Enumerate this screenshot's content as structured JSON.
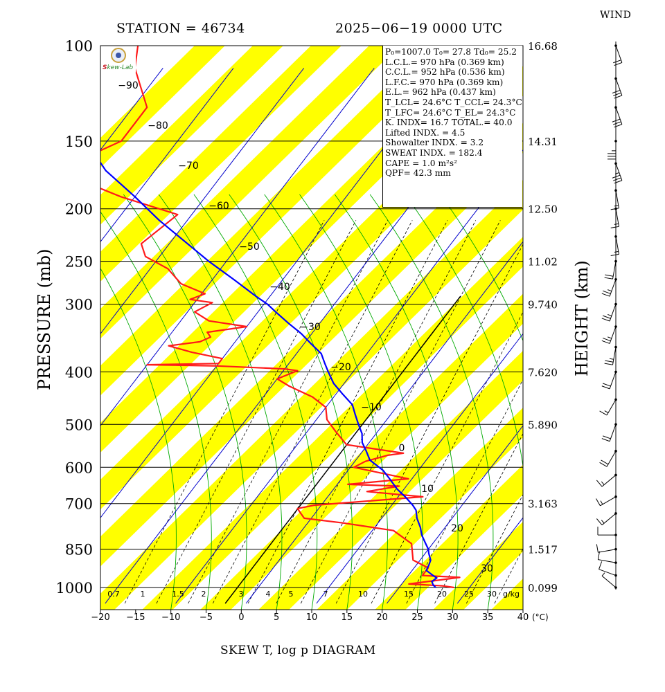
{
  "header": {
    "station": "STATION = 46734",
    "datetime": "2025−06−19 0000 UTC",
    "wind_label": "WIND"
  },
  "axes": {
    "ylabel_left": "PRESSURE (mb)",
    "ylabel_right": "HEIGHT (km)",
    "footer_title": "SKEW T, log p DIAGRAM",
    "x_unit": "(°C)",
    "mixing_unit": "g/kg",
    "pressure_levels": [
      100,
      150,
      200,
      250,
      300,
      400,
      500,
      600,
      700,
      850,
      1000
    ],
    "height_labels": [
      "16.68",
      "14.31",
      "12.50",
      "11.02",
      "9.740",
      "7.620",
      "5.890",
      "3.163",
      "1.517",
      "0.099"
    ],
    "x_ticks": [
      -20,
      -15,
      -10,
      -5,
      0,
      5,
      10,
      15,
      20,
      25,
      30,
      35,
      40
    ],
    "temp_line_labels": [
      -90,
      -80,
      -70,
      -60,
      -50,
      -40,
      -30,
      -20,
      -10,
      0,
      10,
      20,
      30
    ],
    "mixing_ratio_labels": [
      "0.7",
      "1",
      "1.5",
      "2",
      "3",
      "4",
      "5",
      "7",
      "10",
      "15",
      "20",
      "25",
      "30"
    ]
  },
  "logo": {
    "name_a": "S",
    "name_b": "kew",
    "name_c": "Lab"
  },
  "indices": [
    {
      "key": "p0",
      "text": "P₀=1007.0 T₀= 27.8 Td₀= 25.2"
    },
    {
      "key": "lcl",
      "text": "L.C.L.= 970 hPa (0.369 km)"
    },
    {
      "key": "ccl",
      "text": "C.C.L.= 952 hPa (0.536 km)"
    },
    {
      "key": "lfc",
      "text": "L.F.C.= 970 hPa (0.369 km)"
    },
    {
      "key": "el",
      "text": "E.L.= 962 hPa (0.437 km)"
    },
    {
      "key": "tlcl",
      "text": "T_LCL= 24.6°C T_CCL= 24.3°C"
    },
    {
      "key": "tlfc",
      "text": "T_LFC= 24.6°C T_EL= 24.3°C"
    },
    {
      "key": "kindex",
      "text": "K. INDX= 16.7   TOTAL.= 40.0"
    },
    {
      "key": "lifted",
      "text": "Lifted INDX. =    4.5"
    },
    {
      "key": "showalter",
      "text": "Showalter INDX. =     3.2"
    },
    {
      "key": "sweat",
      "text": "SWEAT INDX. =   182.4"
    },
    {
      "key": "cape",
      "text": "CAPE =     1.0 m²s²"
    },
    {
      "key": "qpf",
      "text": "QPF= 42.3 mm"
    }
  ],
  "colors": {
    "temperature": "#ff1a1a",
    "parcel": "#0000ff",
    "isotherm": "#0000cc",
    "moist_adiabat": "#00aa00",
    "band": "#ffff00"
  },
  "chart_data": {
    "type": "line",
    "title": "SKEW T, log p DIAGRAM",
    "xlabel": "(°C)",
    "ylabel": "PRESSURE (mb)",
    "xlim": [
      -20,
      40
    ],
    "ylim": [
      1070,
      100
    ],
    "y_scale": "log",
    "series": [
      {
        "name": "temperature",
        "points": [
          [
            27.8,
            1000
          ],
          [
            26.0,
            993
          ],
          [
            21.0,
            985
          ],
          [
            27.5,
            958
          ],
          [
            22.0,
            950
          ],
          [
            22.0,
            920
          ],
          [
            19.0,
            890
          ],
          [
            17.0,
            830
          ],
          [
            13.0,
            785
          ],
          [
            5.0,
            760
          ],
          [
            -1.0,
            745
          ],
          [
            -2.0,
            730
          ],
          [
            -3.0,
            715
          ],
          [
            -1.0,
            705
          ],
          [
            13.5,
            680
          ],
          [
            5.0,
            665
          ],
          [
            9.0,
            650
          ],
          [
            1.5,
            645
          ],
          [
            9.5,
            630
          ],
          [
            0.5,
            600
          ],
          [
            1.5,
            585
          ],
          [
            4.0,
            570
          ],
          [
            6.0,
            565
          ],
          [
            -3.0,
            545
          ],
          [
            -6.0,
            515
          ],
          [
            -8.5,
            490
          ],
          [
            -10.0,
            465
          ],
          [
            -13.0,
            445
          ],
          [
            -17.5,
            425
          ],
          [
            -20.0,
            412
          ],
          [
            -18.0,
            398
          ],
          [
            -20.0,
            395
          ],
          [
            -30.0,
            390
          ],
          [
            -40.0,
            388
          ],
          [
            -30.0,
            386
          ],
          [
            -30.0,
            378
          ],
          [
            -35.0,
            368
          ],
          [
            -39.0,
            358
          ],
          [
            -35.0,
            352
          ],
          [
            -34.0,
            345
          ],
          [
            -35.0,
            338
          ],
          [
            -30.0,
            330
          ],
          [
            -36.0,
            322
          ],
          [
            -39.0,
            310
          ],
          [
            -37.5,
            298
          ],
          [
            -41.0,
            294
          ],
          [
            -39.5,
            287
          ],
          [
            -44.0,
            275
          ],
          [
            -47.5,
            258
          ],
          [
            -52.0,
            245
          ],
          [
            -54.0,
            232
          ],
          [
            -52.0,
            205
          ],
          [
            -62.0,
            190
          ],
          [
            -74.0,
            170
          ],
          [
            -68.0,
            150
          ],
          [
            -68.0,
            130
          ],
          [
            -74.0,
            110
          ],
          [
            -76.0,
            100
          ]
        ]
      },
      {
        "name": "parcel",
        "points": [
          [
            25.2,
            1000
          ],
          [
            24.6,
            990
          ],
          [
            24.0,
            975
          ],
          [
            24.3,
            960
          ],
          [
            23.5,
            950
          ],
          [
            22.0,
            930
          ],
          [
            21.8,
            910
          ],
          [
            21.5,
            890
          ],
          [
            20.5,
            865
          ],
          [
            20.0,
            850
          ],
          [
            19.0,
            830
          ],
          [
            17.5,
            800
          ],
          [
            16.5,
            775
          ],
          [
            15.0,
            745
          ],
          [
            14.0,
            720
          ],
          [
            13.0,
            705
          ],
          [
            11.0,
            680
          ],
          [
            9.0,
            658
          ],
          [
            7.0,
            632
          ],
          [
            5.0,
            608
          ],
          [
            2.0,
            582
          ],
          [
            0.5,
            560
          ],
          [
            -1.0,
            540
          ],
          [
            -2.0,
            520
          ],
          [
            -3.5,
            500
          ],
          [
            -5.0,
            480
          ],
          [
            -6.5,
            460
          ],
          [
            -9.0,
            440
          ],
          [
            -11.5,
            420
          ],
          [
            -13.5,
            400
          ],
          [
            -15.0,
            385
          ],
          [
            -16.5,
            370
          ],
          [
            -19.0,
            355
          ],
          [
            -21.5,
            340
          ],
          [
            -24.5,
            325
          ],
          [
            -27.5,
            310
          ],
          [
            -29.5,
            300
          ],
          [
            -32.0,
            290
          ],
          [
            -37.0,
            270
          ],
          [
            -42.5,
            250
          ],
          [
            -48.0,
            230
          ],
          [
            -54.0,
            210
          ],
          [
            -60.0,
            190
          ],
          [
            -67.0,
            170
          ],
          [
            -73.0,
            150
          ],
          [
            -78.0,
            130
          ],
          [
            -84.0,
            115
          ],
          [
            -86.0,
            100
          ]
        ]
      }
    ],
    "wind_barbs": [
      {
        "p": 100,
        "speed_kt": 20,
        "dir_deg": 200
      },
      {
        "p": 115,
        "speed_kt": 30,
        "dir_deg": 200
      },
      {
        "p": 130,
        "speed_kt": 30,
        "dir_deg": 200
      },
      {
        "p": 150,
        "speed_kt": 35,
        "dir_deg": 180
      },
      {
        "p": 165,
        "speed_kt": 35,
        "dir_deg": 200
      },
      {
        "p": 185,
        "speed_kt": 15,
        "dir_deg": 190
      },
      {
        "p": 200,
        "speed_kt": 15,
        "dir_deg": 190
      },
      {
        "p": 225,
        "speed_kt": 15,
        "dir_deg": 190
      },
      {
        "p": 250,
        "speed_kt": 20,
        "dir_deg": 170
      },
      {
        "p": 270,
        "speed_kt": 25,
        "dir_deg": 160
      },
      {
        "p": 300,
        "speed_kt": 25,
        "dir_deg": 160
      },
      {
        "p": 330,
        "speed_kt": 25,
        "dir_deg": 160
      },
      {
        "p": 360,
        "speed_kt": 25,
        "dir_deg": 170
      },
      {
        "p": 400,
        "speed_kt": 20,
        "dir_deg": 160
      },
      {
        "p": 450,
        "speed_kt": 15,
        "dir_deg": 150
      },
      {
        "p": 500,
        "speed_kt": 20,
        "dir_deg": 160
      },
      {
        "p": 560,
        "speed_kt": 20,
        "dir_deg": 150
      },
      {
        "p": 620,
        "speed_kt": 15,
        "dir_deg": 130
      },
      {
        "p": 680,
        "speed_kt": 15,
        "dir_deg": 120
      },
      {
        "p": 730,
        "speed_kt": 15,
        "dir_deg": 130
      },
      {
        "p": 800,
        "speed_kt": 10,
        "dir_deg": 90
      },
      {
        "p": 850,
        "speed_kt": 10,
        "dir_deg": 100
      },
      {
        "p": 900,
        "speed_kt": 10,
        "dir_deg": 80
      },
      {
        "p": 950,
        "speed_kt": 10,
        "dir_deg": 70
      },
      {
        "p": 1000,
        "speed_kt": 5,
        "dir_deg": 50
      }
    ]
  }
}
